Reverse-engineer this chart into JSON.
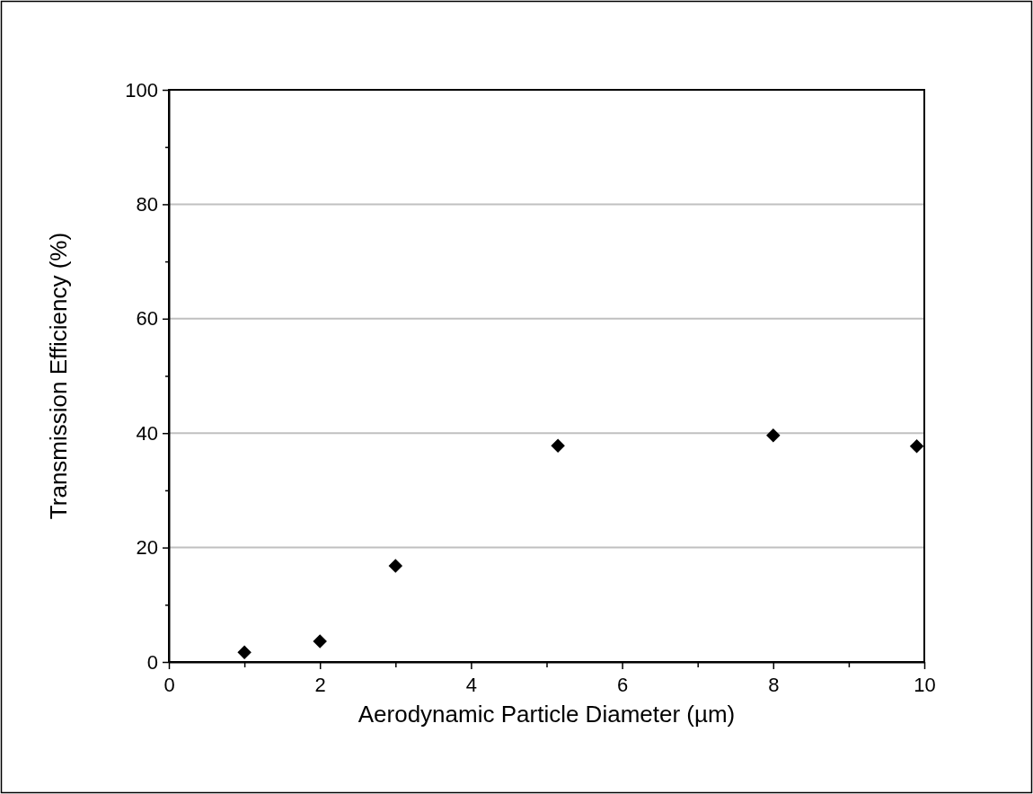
{
  "chart_data": {
    "type": "scatter",
    "xlabel": "Aerodynamic Particle Diameter (µm)",
    "ylabel": "Transmission Efficiency (%)",
    "x": [
      1,
      2,
      3,
      5.15,
      8,
      9.9
    ],
    "series": [
      {
        "color": "#000000",
        "values": [
          1.7,
          3.6,
          16.8,
          37.8,
          39.6,
          37.7
        ]
      }
    ],
    "marker": "diamond",
    "grid": "y",
    "xlim": [
      0,
      10
    ],
    "ylim": [
      0,
      100
    ],
    "xticks": [
      0,
      {
        "value": 1,
        "label": null
      },
      2,
      {
        "value": 3,
        "label": null
      },
      4,
      {
        "value": 5,
        "label": null
      },
      6,
      {
        "value": 7,
        "label": null
      },
      8,
      {
        "value": 9,
        "label": null
      },
      10
    ],
    "yticks": [
      0,
      {
        "value": 10,
        "label": null
      },
      20,
      {
        "value": 30,
        "label": null
      },
      40,
      {
        "value": 50,
        "label": null
      },
      60,
      {
        "value": 70,
        "label": null
      },
      80,
      {
        "value": 90,
        "label": null
      },
      100
    ]
  }
}
